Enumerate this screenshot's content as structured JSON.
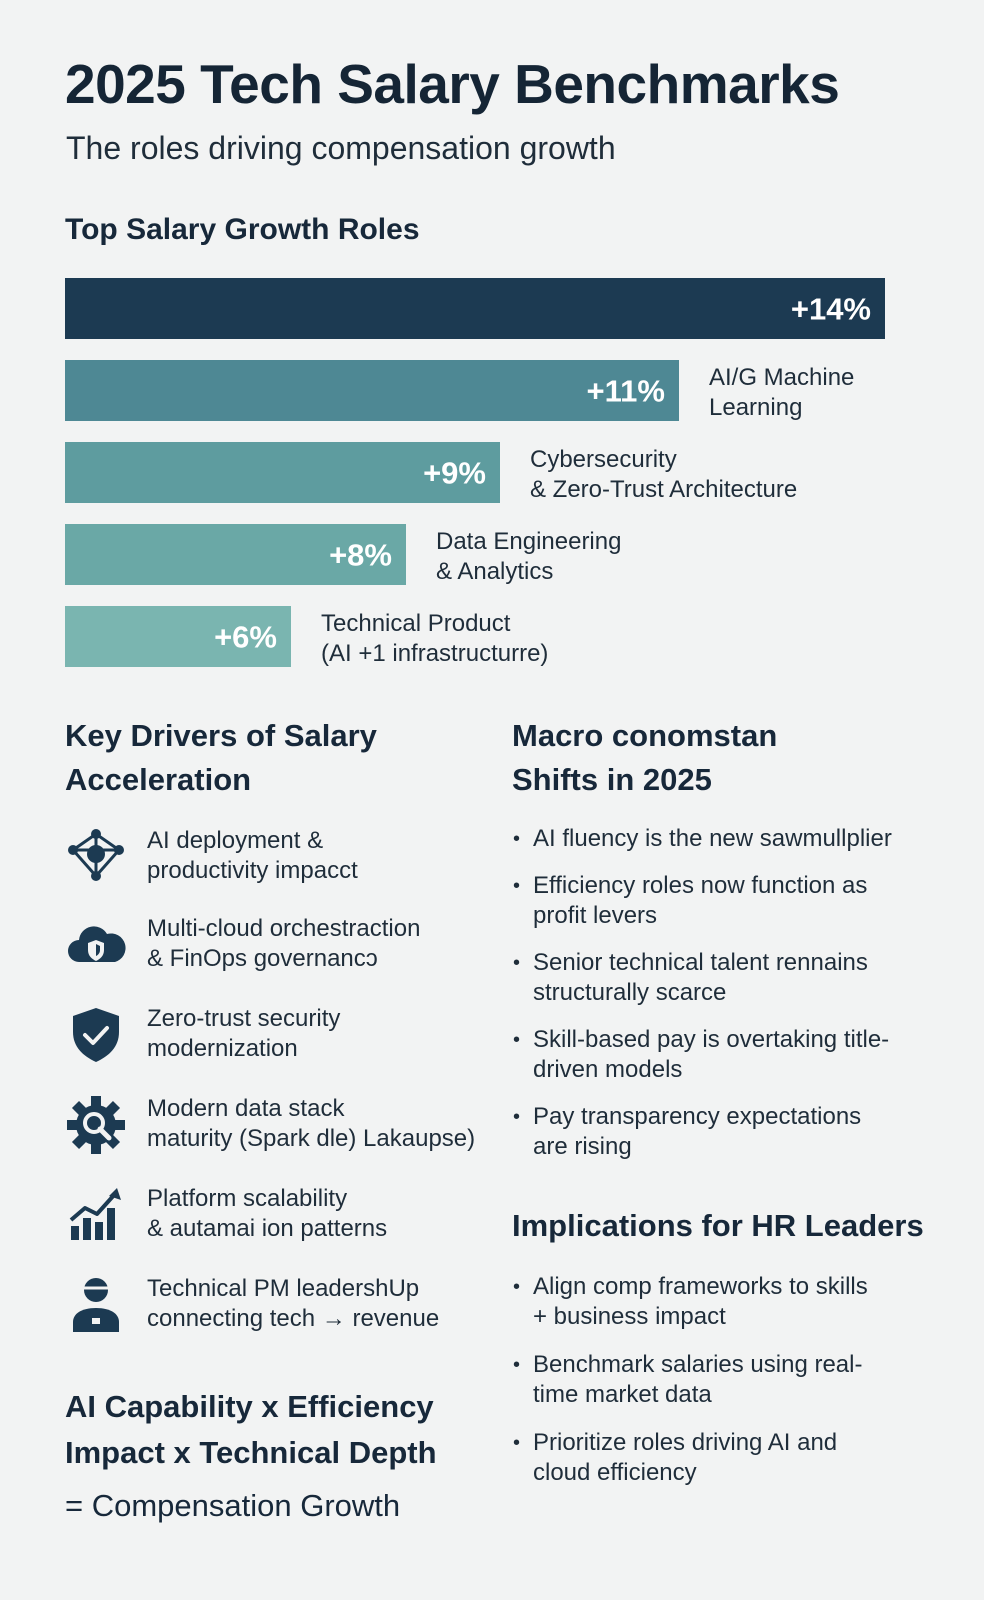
{
  "header": {
    "title": "2025 Tech Salary Benchmarks",
    "subtitle": "The roles driving compensation growth"
  },
  "chart_data": {
    "type": "bar",
    "orientation": "horizontal",
    "title": "Top Salary Growth Roles",
    "categories": [
      "",
      "AI/G Machine Learning",
      "Cybersecurity & Zero-Trust Architecture",
      "Data Engineering & Analytics",
      "Technical Product (AI +1 infrastructurre)"
    ],
    "label_lines": [
      [],
      [
        "AI/G Machine",
        "Learning"
      ],
      [
        "Cybersecurity",
        "& Zero-Trust Architecture"
      ],
      [
        "Data Engineering",
        "& Analytics"
      ],
      [
        "Technical Product",
        "(AI +1 infrastructurre)"
      ]
    ],
    "values": [
      14,
      11,
      9,
      8,
      6
    ],
    "value_labels": [
      "+14%",
      "+11%",
      "+9%",
      "+8%",
      "+6%"
    ],
    "colors": [
      "#1c3a52",
      "#4e8894",
      "#5e9c9f",
      "#6aa8a6",
      "#7ab5b0"
    ],
    "unit": "%",
    "xlim": [
      0,
      14
    ]
  },
  "drivers": {
    "heading_line1": "Key Drivers of Salary",
    "heading_line2": "Acceleration",
    "items": [
      {
        "icon": "network-hub-icon",
        "line1": "AI deployment &",
        "line2": "productivity impacct"
      },
      {
        "icon": "cloud-shield-icon",
        "line1": "Multi-cloud orchestraction",
        "line2": "& FinOps governancↄ"
      },
      {
        "icon": "security-shield-icon",
        "line1": "Zero-trust security",
        "line2": "modernization"
      },
      {
        "icon": "gear-search-icon",
        "line1": "Modern data stack",
        "line2": "maturity (Spark  dle) Lakaupse)"
      },
      {
        "icon": "growth-chart-icon",
        "line1": "Platform scalability",
        "line2": "& autamai ion patterns"
      },
      {
        "icon": "person-badge-icon",
        "line1": "Technical PM leadershUp",
        "line2": "connecting tech → revenue"
      }
    ]
  },
  "macro": {
    "heading_line1": "Macro conomstan",
    "heading_line2": "Shifts in 2025",
    "items": [
      "AI fluency is the new sawmullplier",
      "Efficiency roles now function as profit levers",
      "Senior technical talent rennains structurally scarce",
      "Skill-based pay is overtaking title-driven models",
      "Pay transparency expectations are rising"
    ]
  },
  "implications": {
    "heading": "Implications for HR Leaders",
    "items": [
      "Align comp frameworks to skills + business impact",
      "Benchmark salaries using real-time market data",
      "Prioritize roles driving AI and cloud efficiency"
    ]
  },
  "formula": {
    "line1": "AI Capability x Efficiency",
    "line2": "Impact x Technical Depth",
    "result": "= Compensation Growth"
  },
  "colors": {
    "background": "#f2f3f3",
    "text": "#17283a",
    "icon": "#1c3a52"
  }
}
